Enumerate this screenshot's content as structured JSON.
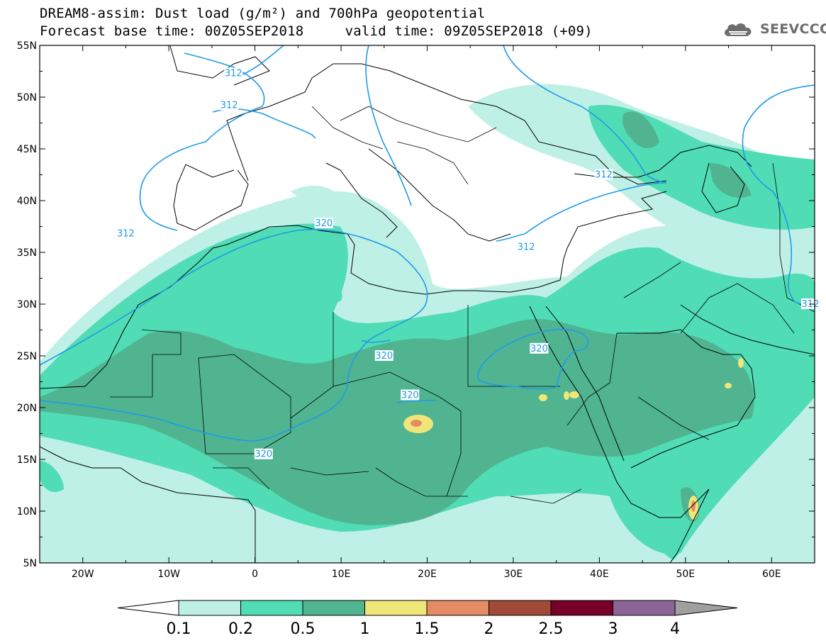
{
  "header": {
    "title_line1": "DREAM8-assim: Dust load (g/m²) and 700hPa geopotential",
    "title_line2": "Forecast base time: 00Z05SEP2018     valid time: 09Z05SEP2018 (+09)"
  },
  "logo": {
    "text": "SEEVCCC",
    "icon": "cloud-icon"
  },
  "map": {
    "lon_range": [
      -25,
      65
    ],
    "lat_range": [
      5,
      55
    ],
    "lon_ticks": [
      {
        "value": -20,
        "label": "20W"
      },
      {
        "value": -10,
        "label": "10W"
      },
      {
        "value": 0,
        "label": "0"
      },
      {
        "value": 10,
        "label": "10E"
      },
      {
        "value": 20,
        "label": "20E"
      },
      {
        "value": 30,
        "label": "30E"
      },
      {
        "value": 40,
        "label": "40E"
      },
      {
        "value": 50,
        "label": "50E"
      },
      {
        "value": 60,
        "label": "60E"
      }
    ],
    "lat_ticks": [
      {
        "value": 55,
        "label": "55N"
      },
      {
        "value": 50,
        "label": "50N"
      },
      {
        "value": 45,
        "label": "45N"
      },
      {
        "value": 40,
        "label": "40N"
      },
      {
        "value": 35,
        "label": "35N"
      },
      {
        "value": 30,
        "label": "30N"
      },
      {
        "value": 25,
        "label": "25N"
      },
      {
        "value": 20,
        "label": "20N"
      },
      {
        "value": 15,
        "label": "15N"
      },
      {
        "value": 10,
        "label": "10N"
      },
      {
        "value": 5,
        "label": "5N"
      }
    ],
    "contour_color": "#1f9be6",
    "contour_labels": [
      {
        "text": "312",
        "lon": -2.5,
        "lat": 52.3
      },
      {
        "text": "312",
        "lon": -3.0,
        "lat": 49.2
      },
      {
        "text": "312",
        "lon": -15.0,
        "lat": 36.8
      },
      {
        "text": "312",
        "lon": 31.5,
        "lat": 35.5
      },
      {
        "text": "312",
        "lon": 40.5,
        "lat": 42.5
      },
      {
        "text": "312",
        "lon": 64.5,
        "lat": 30.0
      },
      {
        "text": "320",
        "lon": 8.0,
        "lat": 37.8
      },
      {
        "text": "320",
        "lon": 15.0,
        "lat": 25.0
      },
      {
        "text": "320",
        "lon": 1.0,
        "lat": 15.5
      },
      {
        "text": "320",
        "lon": 18.0,
        "lat": 21.2
      },
      {
        "text": "320",
        "lon": 33.0,
        "lat": 25.7
      }
    ]
  },
  "colorbar": {
    "colors": [
      "#bef0e6",
      "#50dcb4",
      "#50b491",
      "#f0e678",
      "#e68c64",
      "#a04a37",
      "#780028",
      "#8c6496",
      "#a0a0a0"
    ],
    "low_color": "#ffffff",
    "labels": [
      "0.1",
      "0.2",
      "0.5",
      "1",
      "1.5",
      "2",
      "2.5",
      "3",
      "4"
    ]
  }
}
